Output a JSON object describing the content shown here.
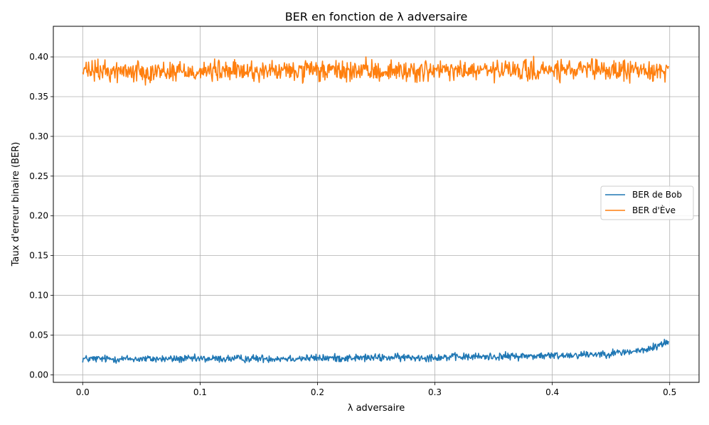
{
  "chart_data": {
    "type": "line",
    "title": "BER en fonction de λ adversaire",
    "xlabel": "λ adversaire",
    "ylabel": "Taux d'erreur binaire (BER)",
    "xlim": [
      -0.025,
      0.525
    ],
    "ylim": [
      -0.0095,
      0.4385
    ],
    "grid": true,
    "legend_position": "center-right",
    "x_ticks": [
      0.0,
      0.1,
      0.2,
      0.3,
      0.4,
      0.5
    ],
    "x_tick_labels": [
      "0.0",
      "0.1",
      "0.2",
      "0.3",
      "0.4",
      "0.5"
    ],
    "y_ticks": [
      0.0,
      0.05,
      0.1,
      0.15,
      0.2,
      0.25,
      0.3,
      0.35,
      0.4
    ],
    "y_tick_labels": [
      "0.00",
      "0.05",
      "0.10",
      "0.15",
      "0.20",
      "0.25",
      "0.30",
      "0.35",
      "0.40"
    ],
    "x_range": [
      0.0,
      0.499
    ],
    "series": [
      {
        "name": "BER de Bob",
        "color": "#1f77b4",
        "description_mean": "≈0.02 up to λ≈0.4, rising to ≈0.04 at λ≈0.5",
        "anchors": [
          [
            0.0,
            0.02
          ],
          [
            0.1,
            0.02
          ],
          [
            0.2,
            0.021
          ],
          [
            0.3,
            0.022
          ],
          [
            0.4,
            0.024
          ],
          [
            0.45,
            0.027
          ],
          [
            0.48,
            0.031
          ],
          [
            0.499,
            0.042
          ]
        ],
        "noise_amplitude": 0.004
      },
      {
        "name": "BER d'Ève",
        "color": "#ff7f0e",
        "anchors": [
          [
            0.0,
            0.382
          ],
          [
            0.25,
            0.382
          ],
          [
            0.5,
            0.383
          ]
        ],
        "noise_amplitude": 0.011
      }
    ]
  }
}
